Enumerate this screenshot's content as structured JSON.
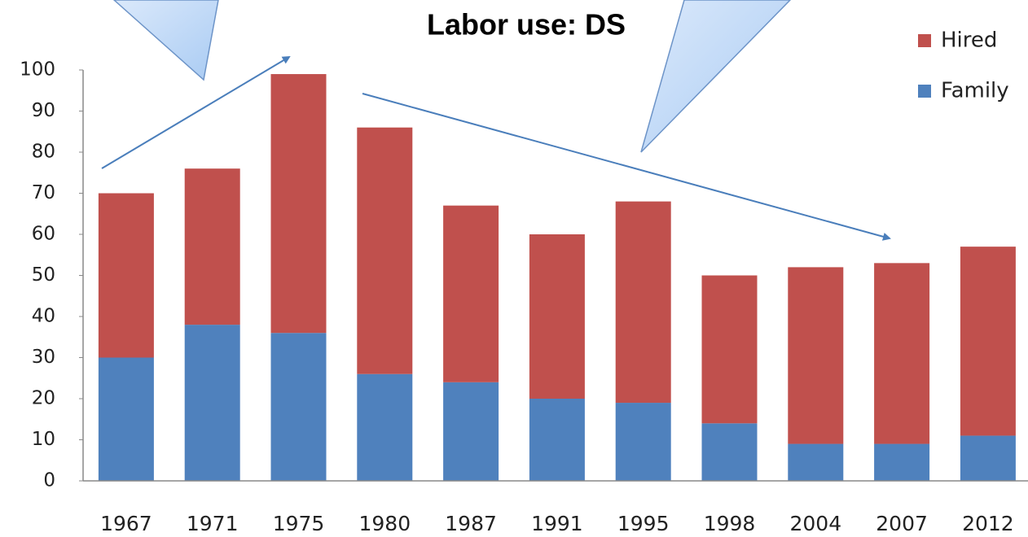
{
  "chart_data": {
    "type": "stacked_bar",
    "title": "Labor use: DS",
    "categories": [
      "1967",
      "1971",
      "1975",
      "1980",
      "1987",
      "1991",
      "1995",
      "1998",
      "2004",
      "2007",
      "2012"
    ],
    "series": [
      {
        "name": "Family",
        "color": "#4f81bd",
        "values": [
          30,
          38,
          36,
          26,
          24,
          20,
          19,
          14,
          9,
          9,
          11
        ]
      },
      {
        "name": "Hired",
        "color": "#c0504d",
        "values": [
          40,
          38,
          63,
          60,
          43,
          40,
          49,
          36,
          43,
          44,
          46
        ]
      }
    ],
    "ylim": [
      0,
      100
    ],
    "yticks": [
      0,
      10,
      20,
      30,
      40,
      50,
      60,
      70,
      80,
      90,
      100
    ],
    "grid": false,
    "legend": "top-right"
  }
}
